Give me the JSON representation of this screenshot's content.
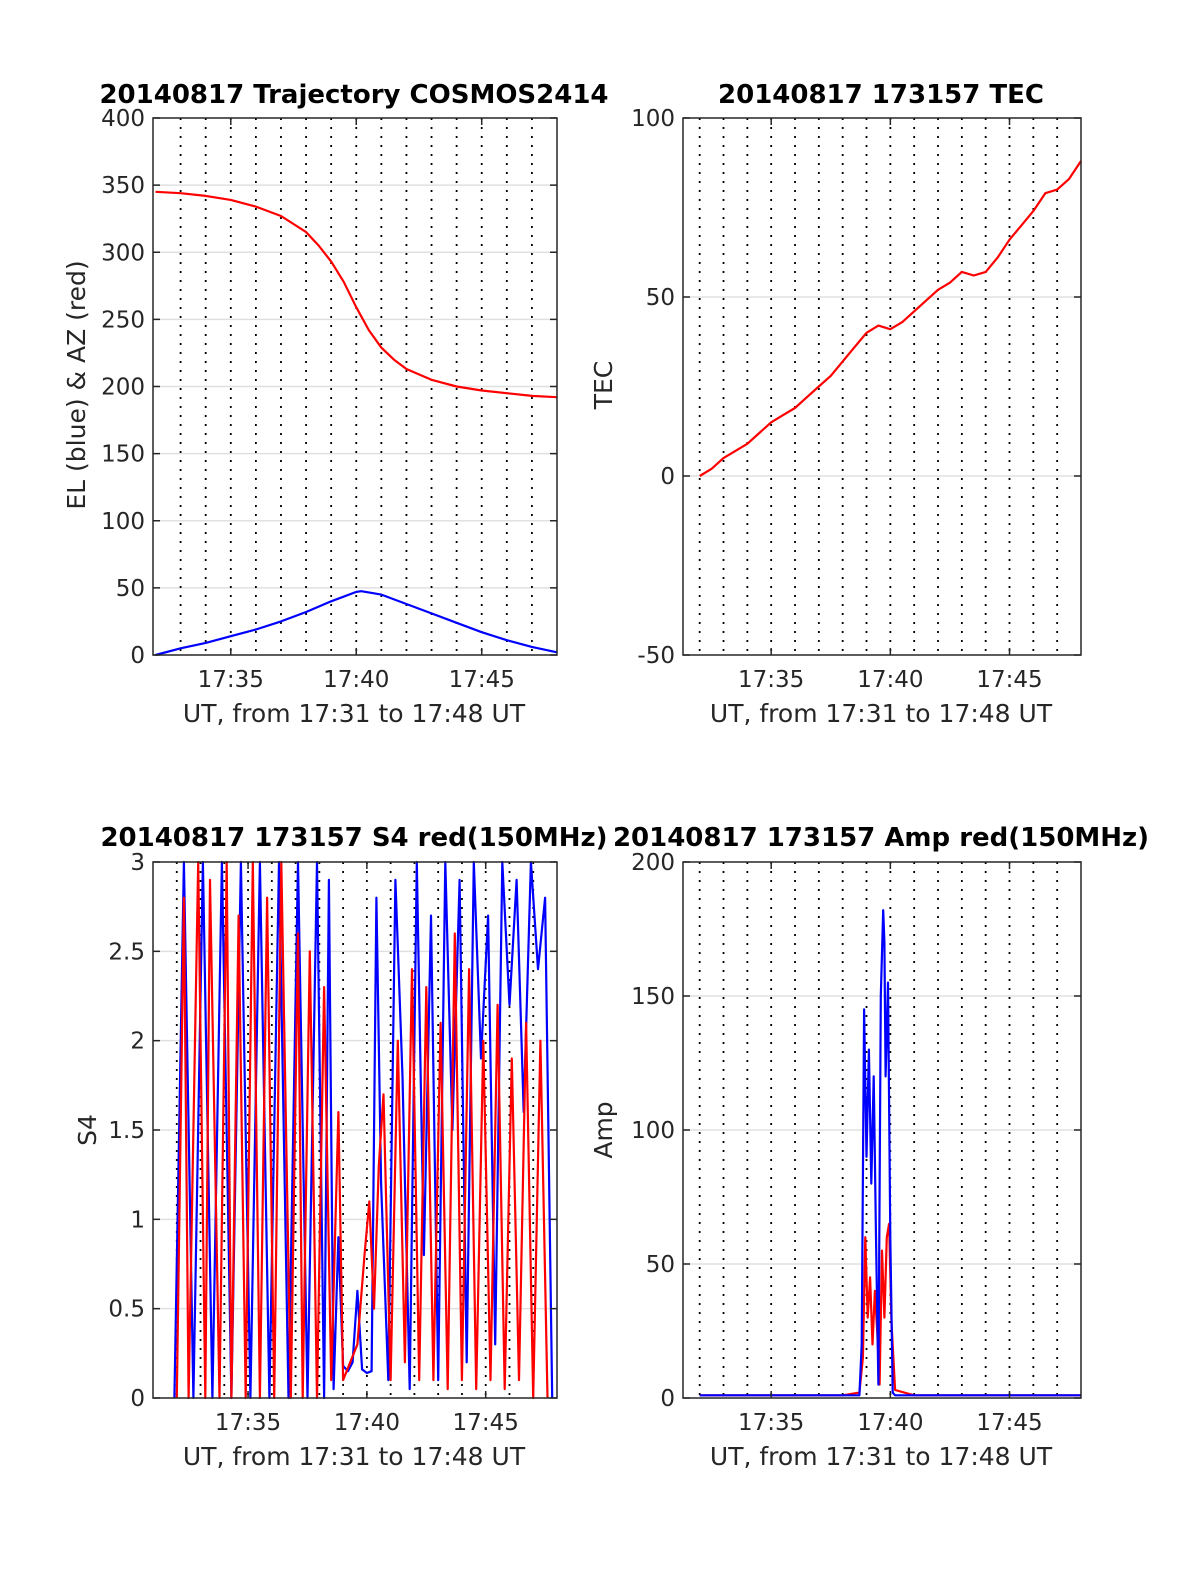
{
  "chart_data": [
    {
      "id": "trajectory",
      "type": "line",
      "title": "20140817 Trajectory COSMOS2414",
      "xlabel": "UT, from 17:31 to 17:48 UT",
      "ylabel": "EL (blue) & AZ (red)",
      "xlim": [
        31.9,
        48.0
      ],
      "ylim": [
        0,
        400
      ],
      "xticks": [
        35,
        40,
        45
      ],
      "xtick_labels": [
        "17:35",
        "17:40",
        "17:45"
      ],
      "yticks": [
        0,
        50,
        100,
        150,
        200,
        250,
        300,
        350,
        400
      ],
      "ytick_labels": [
        "0",
        "50",
        "100",
        "150",
        "200",
        "250",
        "300",
        "350",
        "400"
      ],
      "vlines": [
        33,
        34,
        35,
        36,
        37,
        38,
        39,
        40,
        41,
        42,
        43,
        44,
        45,
        46,
        47
      ],
      "grid": true,
      "series": [
        {
          "color": "#0000ff",
          "x": [
            32,
            33,
            34,
            35,
            36,
            37,
            38,
            39,
            40,
            40.2,
            41,
            42,
            43,
            44,
            45,
            46,
            47,
            48
          ],
          "y": [
            0,
            5,
            9,
            14,
            19,
            25,
            32,
            40,
            47,
            47.5,
            45,
            38,
            31,
            24,
            17,
            11,
            6,
            2
          ]
        },
        {
          "color": "#ff0000",
          "x": [
            32,
            33,
            34,
            35,
            36,
            37,
            38,
            38.5,
            39,
            39.5,
            40,
            40.5,
            41,
            41.5,
            42,
            43,
            44,
            45,
            46,
            47,
            48
          ],
          "y": [
            345,
            344,
            342,
            339,
            334,
            327,
            315,
            305,
            293,
            278,
            259,
            242,
            229,
            220,
            213,
            205,
            200,
            197,
            195,
            193,
            192
          ]
        }
      ]
    },
    {
      "id": "tec",
      "type": "line",
      "title": "20140817 173157 TEC",
      "xlabel": "UT, from 17:31 to 17:48 UT",
      "ylabel": "TEC",
      "xlim": [
        31.3,
        48.0
      ],
      "ylim": [
        -50,
        100
      ],
      "xticks": [
        35,
        40,
        45
      ],
      "xtick_labels": [
        "17:35",
        "17:40",
        "17:45"
      ],
      "yticks": [
        -50,
        0,
        50,
        100
      ],
      "ytick_labels": [
        "-50",
        "0",
        "50",
        "100"
      ],
      "vlines": [
        32,
        33,
        34,
        35,
        36,
        37,
        38,
        39,
        40,
        41,
        42,
        43,
        44,
        45,
        46,
        47
      ],
      "grid": true,
      "series": [
        {
          "color": "#ff0000",
          "x": [
            32,
            32.5,
            33,
            33.5,
            34,
            34.5,
            35,
            35.5,
            36,
            36.5,
            37,
            37.5,
            38,
            38.5,
            39,
            39.5,
            40,
            40.5,
            41,
            41.5,
            42,
            42.5,
            43,
            43.5,
            44,
            44.5,
            45,
            45.5,
            46,
            46.5,
            47,
            47.5,
            48
          ],
          "y": [
            0,
            2,
            5,
            7,
            9,
            12,
            15,
            17,
            19,
            22,
            25,
            28,
            32,
            36,
            40,
            42,
            41,
            43,
            46,
            49,
            52,
            54,
            57,
            56,
            57,
            61,
            66,
            70,
            74,
            79,
            80,
            83,
            88
          ]
        }
      ]
    },
    {
      "id": "s4",
      "type": "line",
      "title": "20140817 173157 S4 red(150MHz)",
      "xlabel": "UT, from 17:31 to 17:48 UT",
      "ylabel": "S4",
      "xlim": [
        31.0,
        48.0
      ],
      "ylim": [
        0,
        3
      ],
      "xticks": [
        35,
        40,
        45
      ],
      "xtick_labels": [
        "17:35",
        "17:40",
        "17:45"
      ],
      "yticks": [
        0,
        0.5,
        1,
        1.5,
        2,
        2.5,
        3
      ],
      "ytick_labels": [
        "0",
        "0.5",
        "1",
        "1.5",
        "2",
        "2.5",
        "3"
      ],
      "vlines": [
        32,
        33,
        34,
        35,
        36,
        37,
        38,
        39,
        40,
        41,
        42,
        43,
        44,
        45,
        46,
        47
      ],
      "grid": true,
      "series": [
        {
          "color": "#0000ff",
          "x": [
            31.9,
            32.3,
            32.7,
            33.1,
            33.5,
            33.9,
            34.3,
            34.7,
            35.1,
            35.5,
            35.9,
            36.3,
            36.7,
            37.1,
            37.5,
            37.9,
            38.2,
            38.4,
            38.6,
            38.8,
            39.0,
            39.2,
            39.4,
            39.6,
            39.8,
            40.0,
            40.2,
            40.4,
            40.6,
            40.9,
            41.2,
            41.5,
            41.8,
            42.1,
            42.4,
            42.7,
            43.0,
            43.3,
            43.6,
            43.9,
            44.2,
            44.5,
            44.8,
            45.1,
            45.4,
            45.7,
            46.0,
            46.3,
            46.6,
            46.9,
            47.2,
            47.5,
            47.8
          ],
          "y": [
            0,
            3,
            0,
            3,
            0,
            3,
            0,
            3,
            0,
            3,
            0,
            3,
            0,
            3,
            0,
            3,
            0,
            2.9,
            0.05,
            0.9,
            0.18,
            0.15,
            0.2,
            0.6,
            0.16,
            0.14,
            0.15,
            2.8,
            1.2,
            0.1,
            2.9,
            1.8,
            0.05,
            3,
            0.8,
            2.7,
            0.1,
            3,
            1.5,
            2.9,
            0.2,
            3,
            1.9,
            2.7,
            0.3,
            3,
            2.2,
            2.9,
            1.6,
            3,
            2.4,
            2.8,
            0
          ]
        },
        {
          "color": "#ff0000",
          "x": [
            32.0,
            32.3,
            32.5,
            32.9,
            33.2,
            33.4,
            33.8,
            34.1,
            34.3,
            34.6,
            34.9,
            35.2,
            35.5,
            35.8,
            36.1,
            36.4,
            36.8,
            37.1,
            37.3,
            37.6,
            37.9,
            38.2,
            38.5,
            38.8,
            39.0,
            39.3,
            39.6,
            39.9,
            40.1,
            40.3,
            40.5,
            40.7,
            41.0,
            41.3,
            41.6,
            41.9,
            42.2,
            42.5,
            42.8,
            43.1,
            43.4,
            43.7,
            44.0,
            44.3,
            44.6,
            44.9,
            45.2,
            45.5,
            45.8,
            46.1,
            46.4,
            46.7,
            47.0,
            47.3,
            47.6
          ],
          "y": [
            0,
            2.8,
            0,
            3,
            0,
            2.9,
            0,
            3,
            0,
            2.7,
            0,
            3,
            0,
            2.8,
            0,
            3,
            0,
            2.6,
            0,
            2.5,
            0,
            2.3,
            0.1,
            1.6,
            0.1,
            0.2,
            0.3,
            0.8,
            1.1,
            0.5,
            1.3,
            1.7,
            0.1,
            2.0,
            0.2,
            2.4,
            0.1,
            2.3,
            0.1,
            2.1,
            0.05,
            2.6,
            0.1,
            2.4,
            0.05,
            2.0,
            0.1,
            2.2,
            0.05,
            1.9,
            0.1,
            2.1,
            0,
            2.0,
            0
          ]
        }
      ]
    },
    {
      "id": "amp",
      "type": "line",
      "title": "20140817 173157 Amp red(150MHz)",
      "xlabel": "UT, from 17:31 to 17:48 UT",
      "ylabel": "Amp",
      "xlim": [
        31.3,
        48.0
      ],
      "ylim": [
        0,
        200
      ],
      "xticks": [
        35,
        40,
        45
      ],
      "xtick_labels": [
        "17:35",
        "17:40",
        "17:45"
      ],
      "yticks": [
        0,
        50,
        100,
        150,
        200
      ],
      "ytick_labels": [
        "0",
        "50",
        "100",
        "150",
        "200"
      ],
      "vlines": [
        32,
        33,
        34,
        35,
        36,
        37,
        38,
        39,
        40,
        41,
        42,
        43,
        44,
        45,
        46,
        47
      ],
      "grid": true,
      "series": [
        {
          "color": "#ff0000",
          "x": [
            32,
            33,
            34,
            35,
            36,
            37,
            38,
            38.7,
            38.85,
            38.95,
            39.05,
            39.15,
            39.25,
            39.35,
            39.45,
            39.55,
            39.65,
            39.75,
            39.85,
            39.95,
            40.05,
            40.2,
            41,
            42,
            43,
            44,
            45,
            46,
            47,
            48
          ],
          "y": [
            1,
            1,
            1,
            1,
            1,
            1,
            1,
            2,
            15,
            60,
            30,
            45,
            20,
            40,
            25,
            5,
            55,
            30,
            60,
            65,
            28,
            3,
            1,
            1,
            1,
            1,
            1,
            1,
            1,
            1
          ]
        },
        {
          "color": "#0000ff",
          "x": [
            32,
            33,
            34,
            35,
            36,
            37,
            38,
            38.7,
            38.8,
            38.9,
            39.0,
            39.1,
            39.2,
            39.3,
            39.4,
            39.5,
            39.6,
            39.7,
            39.75,
            39.8,
            39.9,
            40.0,
            40.1,
            40.2,
            41,
            42,
            43,
            44,
            45,
            46,
            47,
            48
          ],
          "y": [
            1,
            1,
            1,
            1,
            1,
            1,
            1,
            1,
            20,
            145,
            90,
            130,
            80,
            120,
            60,
            5,
            150,
            182,
            170,
            120,
            155,
            60,
            2,
            1,
            1,
            1,
            1,
            1,
            1,
            1,
            1,
            1
          ]
        }
      ]
    }
  ]
}
